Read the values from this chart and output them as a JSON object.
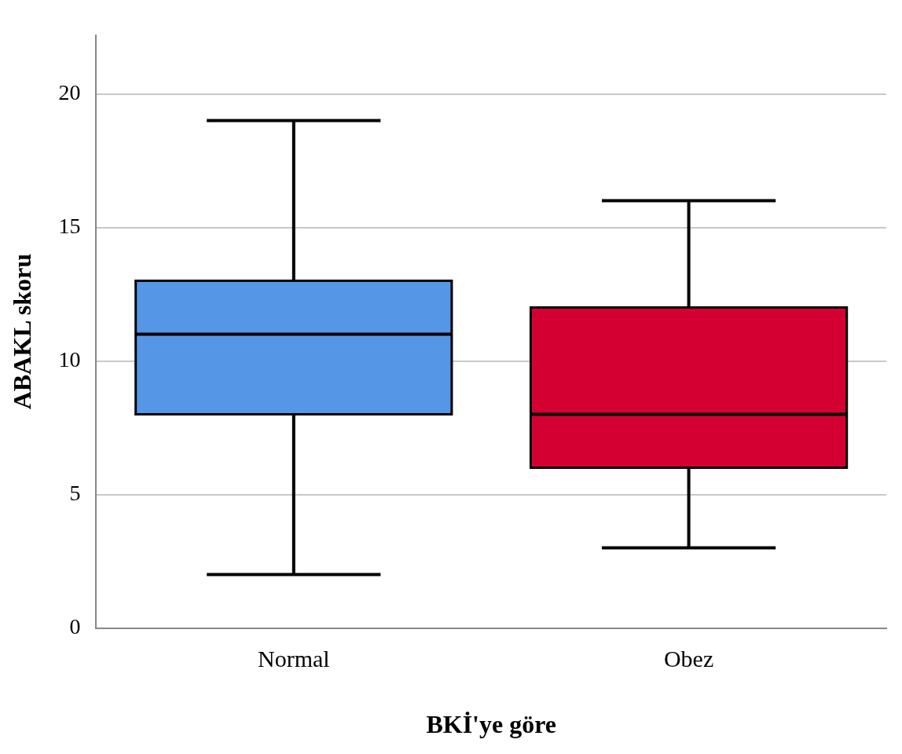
{
  "chart_data": {
    "type": "box",
    "xlabel": "BKİ'ye göre",
    "ylabel": "ABAKL skoru",
    "categories": [
      "Normal",
      "Obez"
    ],
    "colors": [
      "#5596e6",
      "#d50032"
    ],
    "boxes": [
      {
        "low": 2,
        "q1": 8,
        "median": 11,
        "q3": 13,
        "high": 19
      },
      {
        "low": 3,
        "q1": 6,
        "median": 8,
        "q3": 12,
        "high": 16
      }
    ],
    "ylim": [
      0,
      22.2
    ],
    "yticks": [
      0,
      5,
      10,
      15,
      20
    ],
    "grid": "y"
  }
}
